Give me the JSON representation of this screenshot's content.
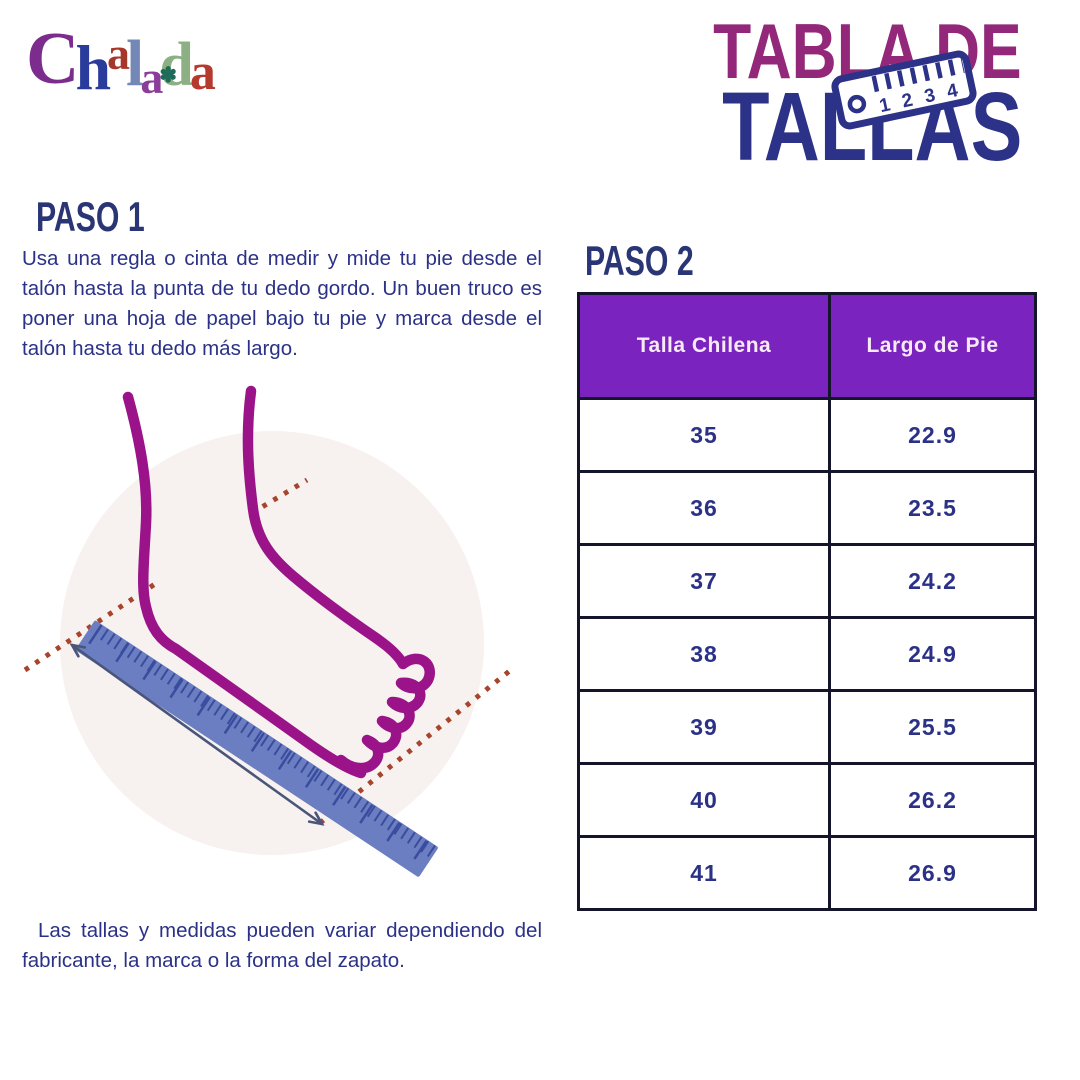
{
  "brand": {
    "name": "Chalada",
    "letters": [
      {
        "char": "C",
        "color": "#7B2C8C"
      },
      {
        "char": "h",
        "color": "#2A3C9B"
      },
      {
        "char": "a",
        "color": "#A5382B"
      },
      {
        "char": "l",
        "color": "#7488B8"
      },
      {
        "char": "a",
        "color": "#8A3D99"
      },
      {
        "char": "d",
        "color": "#8CAF83"
      },
      {
        "char": "a",
        "color": "#B53A2D"
      }
    ],
    "flower_glyph": "✽",
    "flower_color": "#1F6B5A"
  },
  "title": {
    "line1": "TABLA DE",
    "line2": "TALLAS",
    "tape_numbers": [
      "1",
      "2",
      "3",
      "4"
    ],
    "color_line1": "#93287A",
    "color_line2": "#2C3287"
  },
  "paso1": {
    "heading": "PASO 1",
    "body": "Usa una regla o cinta de medir y mide tu pie desde el talón hasta la punta de tu dedo gordo. Un buen truco es poner una hoja de papel bajo tu pie y marca desde el talón hasta tu dedo más largo."
  },
  "paso2": {
    "heading": "PASO 2"
  },
  "size_table": {
    "headers": [
      "Talla Chilena",
      "Largo de Pie"
    ],
    "rows": [
      [
        "35",
        "22.9"
      ],
      [
        "36",
        "23.5"
      ],
      [
        "37",
        "24.2"
      ],
      [
        "38",
        "24.9"
      ],
      [
        "39",
        "25.5"
      ],
      [
        "40",
        "26.2"
      ],
      [
        "41",
        "26.9"
      ]
    ],
    "header_bg": "#7A23BE",
    "header_text_color": "#F6EAF4",
    "cell_text_color": "#2B3187",
    "border_color": "#14142A"
  },
  "footnote": "Las tallas y medidas pueden variar dependiendo del fabricante, la marca o la forma del zapato.",
  "illustration": {
    "description": "foot being measured with a ruler",
    "foot_color": "#9A1389",
    "ruler_color": "#6B7EC1",
    "ruler_tick_color": "#3A4C9E",
    "dotted_line_color": "#A8442C",
    "arrow_color": "#4A557A",
    "circle_bg": "#F7F1EF"
  },
  "text_color": "#2B3187",
  "heading_color": "#2A3575"
}
